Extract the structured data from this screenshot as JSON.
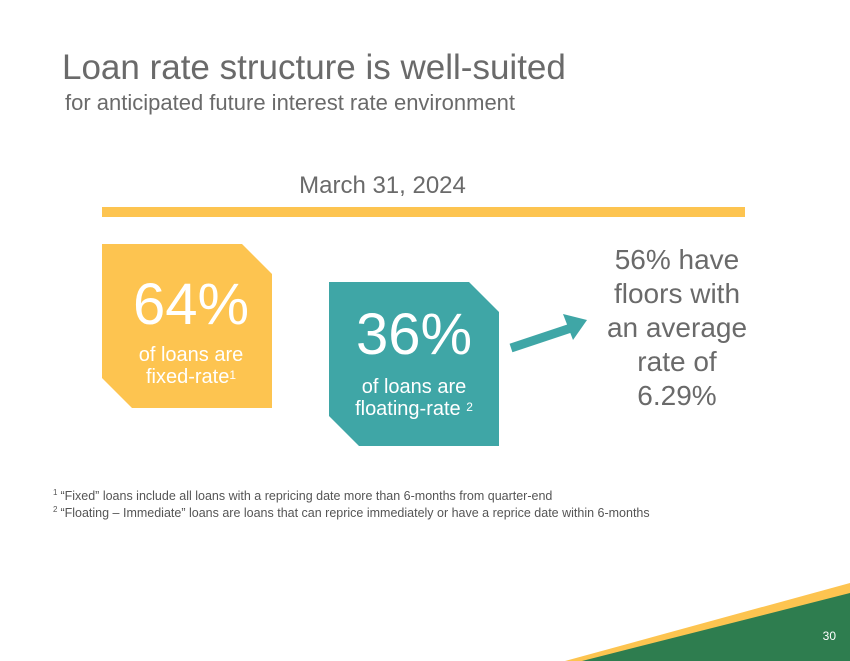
{
  "slide": {
    "title": "Loan rate structure is well-suited",
    "subtitle": "for anticipated future interest rate environment",
    "date_label": "March 31, 2024",
    "page_number": "30"
  },
  "stats": {
    "fixed": {
      "percent": "64%",
      "line1": "of loans are",
      "line2": "fixed-rate",
      "ref": "1"
    },
    "floating": {
      "percent": "36%",
      "line1": "of loans are",
      "line2": "floating-rate",
      "ref": "2"
    }
  },
  "floors_note": [
    "56% have",
    "floors with",
    "an average",
    "rate of",
    "6.29%"
  ],
  "footnotes": [
    {
      "ref": "1",
      "text": "“Fixed” loans include all loans with a repricing date more than 6-months from quarter-end"
    },
    {
      "ref": "2",
      "text": "“Floating – Immediate” loans are loans that can reprice immediately or have a reprice date within 6-months"
    }
  ],
  "colors": {
    "accent_yellow": "#fdc450",
    "accent_teal": "#3fa6a6",
    "corner_green": "#2e7d4f",
    "text_gray": "#6a6a6a"
  }
}
